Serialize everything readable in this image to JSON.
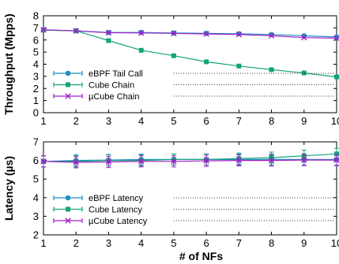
{
  "colors": {
    "ebpf": "#1f8fc0",
    "cube": "#13a37a",
    "ucube": "#a020c8"
  },
  "chart_data": [
    {
      "type": "line",
      "ylabel": "Throughput (Mpps)",
      "xlabel": "",
      "x": [
        1,
        2,
        3,
        4,
        5,
        6,
        7,
        8,
        9,
        10
      ],
      "x_tick_labels": [
        "1",
        "2",
        "3",
        "4",
        "5",
        "6",
        "7",
        "8",
        "9",
        "10"
      ],
      "y_tick_labels": [
        "0",
        "1",
        "2",
        "3",
        "4",
        "5",
        "6",
        "7",
        "8"
      ],
      "xlim": [
        1,
        10
      ],
      "ylim": [
        0,
        8
      ],
      "legend_position": "lower-left",
      "series": [
        {
          "name": "eBPF Tail Call",
          "color_key": "ebpf",
          "marker": "circle",
          "values": [
            6.82,
            6.76,
            6.62,
            6.62,
            6.58,
            6.55,
            6.52,
            6.45,
            6.35,
            6.25
          ]
        },
        {
          "name": "Cube Chain",
          "color_key": "cube",
          "marker": "square",
          "values": [
            6.82,
            6.76,
            5.95,
            5.15,
            4.7,
            4.2,
            3.85,
            3.55,
            3.28,
            2.95
          ]
        },
        {
          "name": "µCube Chain",
          "color_key": "ucube",
          "marker": "x",
          "values": [
            6.85,
            6.75,
            6.6,
            6.58,
            6.55,
            6.5,
            6.45,
            6.35,
            6.2,
            6.15
          ]
        }
      ]
    },
    {
      "type": "line",
      "ylabel": "Latency (µs)",
      "xlabel": "# of NFs",
      "x": [
        1,
        2,
        3,
        4,
        5,
        6,
        7,
        8,
        9,
        10
      ],
      "x_tick_labels": [
        "1",
        "2",
        "3",
        "4",
        "5",
        "6",
        "7",
        "8",
        "9",
        "10"
      ],
      "y_tick_labels": [
        "2",
        "3",
        "4",
        "5",
        "6",
        "7"
      ],
      "xlim": [
        1,
        10
      ],
      "ylim": [
        2,
        7
      ],
      "legend_position": "lower-left",
      "series": [
        {
          "name": "eBPF Latency",
          "color_key": "ebpf",
          "marker": "circle",
          "values": [
            5.95,
            6.0,
            6.02,
            6.05,
            6.05,
            6.05,
            6.05,
            6.05,
            6.05,
            6.05
          ],
          "error": [
            0.3,
            0.3,
            0.3,
            0.3,
            0.3,
            0.3,
            0.3,
            0.3,
            0.3,
            0.3
          ]
        },
        {
          "name": "Cube Latency",
          "color_key": "cube",
          "marker": "square",
          "values": [
            5.95,
            5.95,
            6.0,
            6.0,
            6.05,
            6.05,
            6.1,
            6.15,
            6.25,
            6.35
          ],
          "error": [
            0.3,
            0.3,
            0.3,
            0.3,
            0.3,
            0.3,
            0.3,
            0.3,
            0.3,
            0.3
          ]
        },
        {
          "name": "µCube Latency",
          "color_key": "ucube",
          "marker": "x",
          "values": [
            5.95,
            5.9,
            5.92,
            5.95,
            5.95,
            5.98,
            6.0,
            6.0,
            6.02,
            6.02
          ],
          "error": [
            0.3,
            0.3,
            0.3,
            0.3,
            0.3,
            0.3,
            0.3,
            0.3,
            0.3,
            0.3
          ]
        }
      ]
    }
  ]
}
